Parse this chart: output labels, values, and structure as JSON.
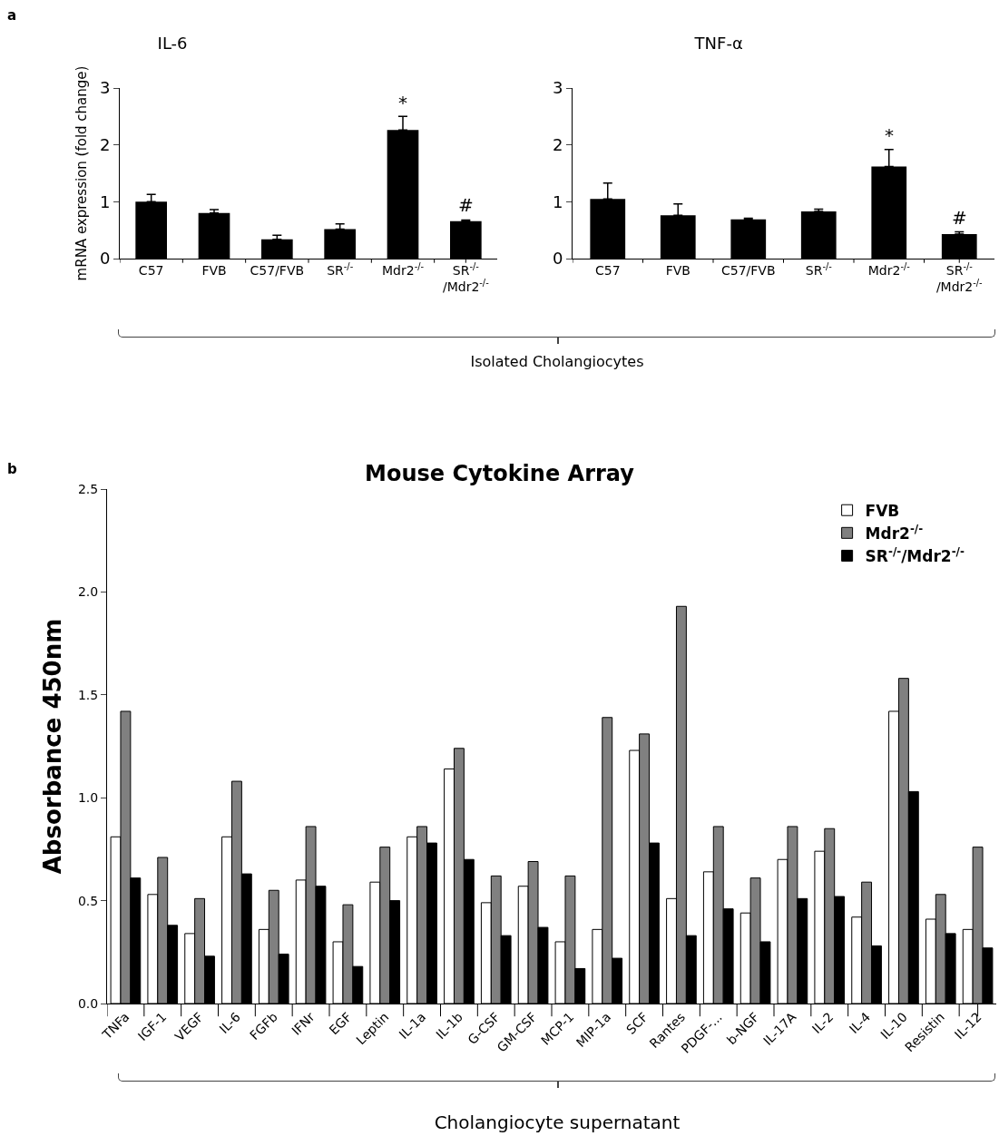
{
  "chart_data": [
    {
      "type": "bar",
      "title": "IL-6",
      "ylabel": "mRNA expression (fold change)",
      "categories": [
        "C57",
        "FVB",
        "C57/FVB",
        "SR$^{-/-}$",
        "Mdr2$^{-/-}$",
        "SR$^{-/-}$\n/Mdr2$^{-/-}$"
      ],
      "values": [
        1.0,
        0.8,
        0.34,
        0.52,
        2.26,
        0.66
      ],
      "color": "#000000",
      "errors": [
        [
          1.0,
          1.13
        ],
        [
          0.8,
          0.86
        ],
        [
          0.34,
          0.41
        ],
        [
          0.52,
          0.61
        ],
        [
          2.26,
          2.5
        ],
        [
          0.66,
          0.68
        ]
      ],
      "ylim": [
        0,
        3
      ],
      "yticks": [
        0,
        1,
        2,
        3
      ],
      "annotations": [
        "a",
        "Isolated Cholangiocytes",
        {
          "text": "*",
          "x": "Mdr2$^{-/-}$",
          "y": 2.52
        },
        {
          "text": "#",
          "x": "SR$^{-/-}$\n/Mdr2$^{-/-}$",
          "y": 0.72
        }
      ]
    },
    {
      "type": "bar",
      "title": "TNF-α",
      "categories": [
        "C57",
        "FVB",
        "C57/FVB",
        "SR$^{-/-}$",
        "Mdr2$^{-/-}$",
        "SR$^{-/-}$\n/Mdr2$^{-/-}$"
      ],
      "values": [
        1.05,
        0.76,
        0.69,
        0.83,
        1.62,
        0.43
      ],
      "color": "#000000",
      "errors": [
        [
          1.05,
          1.33
        ],
        [
          0.76,
          0.96
        ],
        [
          0.69,
          0.71
        ],
        [
          0.83,
          0.87
        ],
        [
          1.62,
          1.92
        ],
        [
          0.43,
          0.47
        ]
      ],
      "ylim": [
        0,
        3
      ],
      "yticks": [
        0,
        1,
        2,
        3
      ],
      "annotations": [
        {
          "text": "*",
          "x": "Mdr2$^{-/-}$",
          "y": 1.94
        },
        {
          "text": "#",
          "x": "SR$^{-/-}$\n/Mdr2$^{-/-}$",
          "y": 0.5
        }
      ]
    },
    {
      "type": "bar",
      "title": "Mouse Cytokine Array",
      "ylabel": "Absorbance 450nm",
      "xlabel": "Cholangiocyte supernatant",
      "legend": "top right",
      "annotations": [
        "b"
      ],
      "categories": [
        "TNFa",
        "IGF-1",
        "VEGF",
        "IL-6",
        "FGFb",
        "IFNr",
        "EGF",
        "Leptin",
        "IL-1a",
        "IL-1b",
        "G-CSF",
        "GM-CSF",
        "MCP-1",
        "MIP-1a",
        "SCF",
        "Rantes",
        "PDGF-...",
        "b-NGF",
        "IL-17A",
        "IL-2",
        "IL-4",
        "IL-10",
        "Resistin",
        "IL-12"
      ],
      "ylim": [
        0,
        2.5
      ],
      "yticks": [
        {
          "value": 0,
          "label": "0.0"
        },
        0.5,
        {
          "value": 1,
          "label": "1.0"
        },
        1.5,
        {
          "value": 2,
          "label": "2.0"
        },
        2.5
      ],
      "series": [
        {
          "name": "FVB",
          "color": "#ffffff",
          "values": [
            0.81,
            0.53,
            0.34,
            0.81,
            0.36,
            0.6,
            0.3,
            0.59,
            0.81,
            1.14,
            0.49,
            0.57,
            0.3,
            0.36,
            1.23,
            0.51,
            0.64,
            0.44,
            0.7,
            0.74,
            0.42,
            1.42,
            0.41,
            0.36
          ]
        },
        {
          "name": "Mdr2$^{-/-}$",
          "color": "#808080",
          "values": [
            1.42,
            0.71,
            0.51,
            1.08,
            0.55,
            0.86,
            0.48,
            0.76,
            0.86,
            1.24,
            0.62,
            0.69,
            0.62,
            1.39,
            1.31,
            1.93,
            0.86,
            0.61,
            0.86,
            0.85,
            0.59,
            1.58,
            0.53,
            0.76
          ]
        },
        {
          "name": "SR$^{-/-}$/Mdr2$^{-/-}$",
          "color": "#000000",
          "values": [
            0.61,
            0.38,
            0.23,
            0.63,
            0.24,
            0.57,
            0.18,
            0.5,
            0.78,
            0.7,
            0.33,
            0.37,
            0.17,
            0.22,
            0.78,
            0.33,
            0.46,
            0.3,
            0.51,
            0.52,
            0.28,
            1.03,
            0.34,
            0.27
          ]
        }
      ]
    }
  ]
}
